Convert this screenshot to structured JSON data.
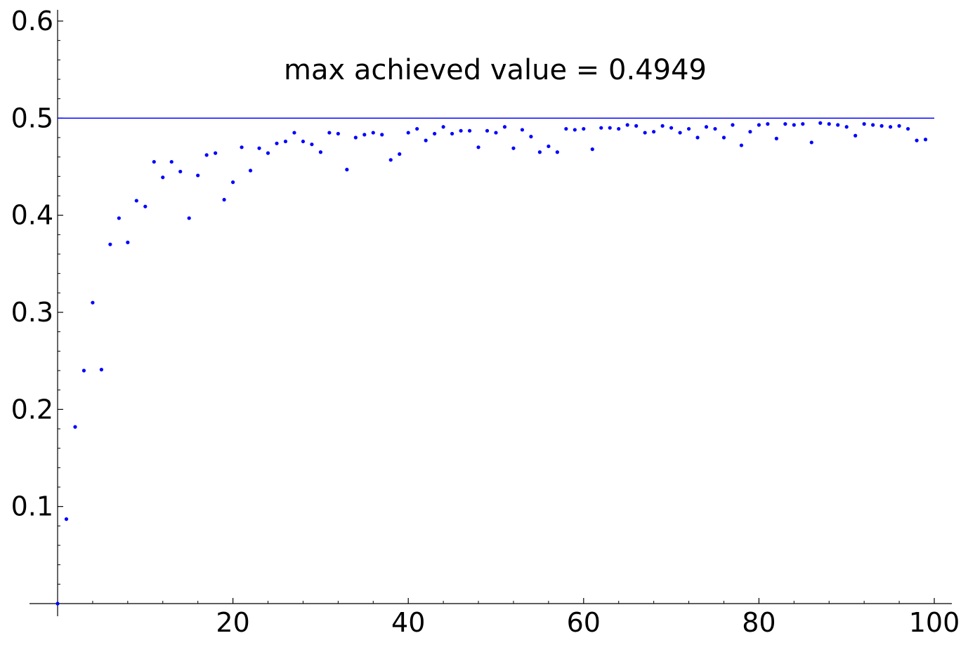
{
  "chart_data": {
    "type": "scatter",
    "title": "",
    "xlabel": "",
    "ylabel": "",
    "xlim": [
      0,
      100
    ],
    "ylim": [
      0,
      0.6
    ],
    "grid": false,
    "annotation": "max achieved value = 0.4949",
    "x_ticks": [
      {
        "value": 20,
        "label": "20"
      },
      {
        "value": 40,
        "label": "40"
      },
      {
        "value": 60,
        "label": "60"
      },
      {
        "value": 80,
        "label": "80"
      },
      {
        "value": 100,
        "label": "100"
      }
    ],
    "y_ticks": [
      {
        "value": 0.1,
        "label": "0.1"
      },
      {
        "value": 0.2,
        "label": "0.2"
      },
      {
        "value": 0.3,
        "label": "0.3"
      },
      {
        "value": 0.4,
        "label": "0.4"
      },
      {
        "value": 0.5,
        "label": "0.5"
      },
      {
        "value": 0.6,
        "label": "0.6"
      }
    ],
    "reference_line": {
      "y": 0.5
    },
    "series_color": "#0000ff",
    "points": [
      [
        0,
        0.0
      ],
      [
        1,
        0.087
      ],
      [
        2,
        0.182
      ],
      [
        3,
        0.24
      ],
      [
        4,
        0.31
      ],
      [
        5,
        0.241
      ],
      [
        6,
        0.37
      ],
      [
        7,
        0.397
      ],
      [
        8,
        0.372
      ],
      [
        9,
        0.415
      ],
      [
        10,
        0.409
      ],
      [
        11,
        0.455
      ],
      [
        12,
        0.439
      ],
      [
        13,
        0.455
      ],
      [
        14,
        0.445
      ],
      [
        15,
        0.397
      ],
      [
        16,
        0.441
      ],
      [
        17,
        0.462
      ],
      [
        18,
        0.464
      ],
      [
        19,
        0.416
      ],
      [
        20,
        0.434
      ],
      [
        21,
        0.47
      ],
      [
        22,
        0.446
      ],
      [
        23,
        0.469
      ],
      [
        24,
        0.464
      ],
      [
        25,
        0.474
      ],
      [
        26,
        0.476
      ],
      [
        27,
        0.485
      ],
      [
        28,
        0.476
      ],
      [
        29,
        0.473
      ],
      [
        30,
        0.465
      ],
      [
        31,
        0.485
      ],
      [
        32,
        0.484
      ],
      [
        33,
        0.447
      ],
      [
        34,
        0.48
      ],
      [
        35,
        0.483
      ],
      [
        36,
        0.485
      ],
      [
        37,
        0.483
      ],
      [
        38,
        0.457
      ],
      [
        39,
        0.463
      ],
      [
        40,
        0.485
      ],
      [
        41,
        0.489
      ],
      [
        42,
        0.477
      ],
      [
        43,
        0.484
      ],
      [
        44,
        0.491
      ],
      [
        45,
        0.484
      ],
      [
        46,
        0.487
      ],
      [
        47,
        0.487
      ],
      [
        48,
        0.47
      ],
      [
        49,
        0.487
      ],
      [
        50,
        0.485
      ],
      [
        51,
        0.491
      ],
      [
        52,
        0.469
      ],
      [
        53,
        0.488
      ],
      [
        54,
        0.481
      ],
      [
        55,
        0.465
      ],
      [
        56,
        0.471
      ],
      [
        57,
        0.465
      ],
      [
        58,
        0.489
      ],
      [
        59,
        0.488
      ],
      [
        60,
        0.489
      ],
      [
        61,
        0.468
      ],
      [
        62,
        0.49
      ],
      [
        63,
        0.49
      ],
      [
        64,
        0.489
      ],
      [
        65,
        0.493
      ],
      [
        66,
        0.492
      ],
      [
        67,
        0.485
      ],
      [
        68,
        0.486
      ],
      [
        69,
        0.492
      ],
      [
        70,
        0.49
      ],
      [
        71,
        0.485
      ],
      [
        72,
        0.489
      ],
      [
        73,
        0.48
      ],
      [
        74,
        0.491
      ],
      [
        75,
        0.489
      ],
      [
        76,
        0.48
      ],
      [
        77,
        0.493
      ],
      [
        78,
        0.472
      ],
      [
        79,
        0.486
      ],
      [
        80,
        0.493
      ],
      [
        81,
        0.494
      ],
      [
        82,
        0.479
      ],
      [
        83,
        0.494
      ],
      [
        84,
        0.493
      ],
      [
        85,
        0.494
      ],
      [
        86,
        0.475
      ],
      [
        87,
        0.495
      ],
      [
        88,
        0.494
      ],
      [
        89,
        0.493
      ],
      [
        90,
        0.491
      ],
      [
        91,
        0.482
      ],
      [
        92,
        0.494
      ],
      [
        93,
        0.493
      ],
      [
        94,
        0.492
      ],
      [
        95,
        0.491
      ],
      [
        96,
        0.492
      ],
      [
        97,
        0.489
      ],
      [
        98,
        0.477
      ],
      [
        99,
        0.478
      ]
    ]
  }
}
